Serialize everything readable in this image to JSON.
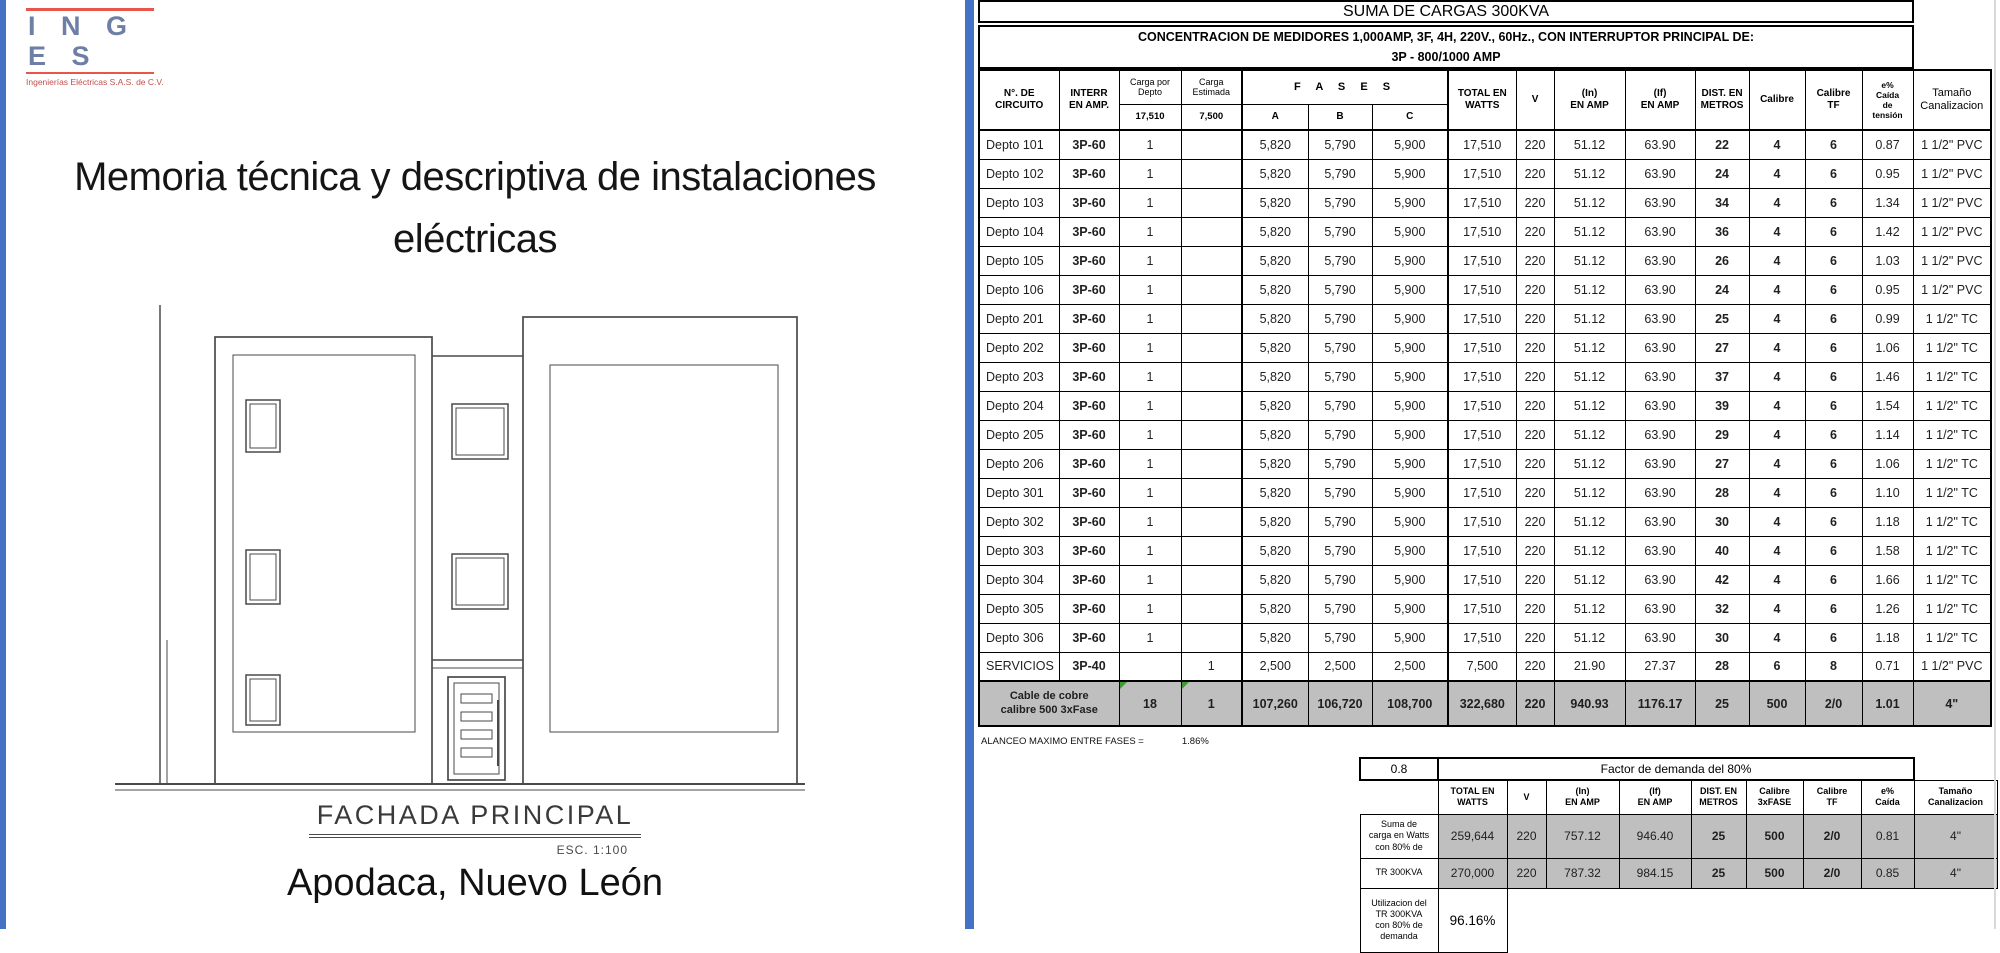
{
  "colors": {
    "accent_blue": "#2776c4",
    "fill_gray": "#bfbfbf",
    "pane_blue": "#4472c4",
    "logo_red": "#e8564a",
    "logo_text": "#6d7fa5"
  },
  "left_panel": {
    "logo_letters": "I N G E S",
    "logo_subtitle": "Ingenierías Eléctricas S.A.S. de C.V.",
    "title_line1": "Memoria técnica y descriptiva de instalaciones",
    "title_line2": "eléctricas",
    "drawing_caption": "FACHADA PRINCIPAL",
    "drawing_scale": "ESC. 1:100",
    "location": "Apodaca, Nuevo León"
  },
  "main_table": {
    "title": "SUMA DE CARGAS 300KVA",
    "subtitle1": "CONCENTRACION DE MEDIDORES  1,000AMP, 3F, 4H, 220V., 60Hz., CON INTERRUPTOR PRINCIPAL DE:",
    "subtitle2": "3P - 800/1000 AMP",
    "header": {
      "circuito": "N°. DE\nCIRCUITO",
      "interr": "INTERR\nEN AMP.",
      "carga_depto": "Carga por\nDepto",
      "carga_depto_val": "17,510",
      "carga_est": "Carga\nEstimada",
      "carga_est_val": "7,500",
      "fases": "F A S E S",
      "fase_a": "A",
      "fase_b": "B",
      "fase_c": "C",
      "total": "TOTAL EN\nWATTS",
      "v": "V",
      "in": "(In)\nEN AMP",
      "if": "(If)\nEN AMP",
      "dist": "DIST. EN\nMETROS",
      "calibre": "Calibre",
      "calibre_tf": "Calibre\nTF",
      "caida": "e%\nCaída\nde\ntensión",
      "tamano": "Tamaño\nCanalizacion"
    },
    "rows": [
      [
        "Depto 101",
        "3P-60",
        "1",
        "",
        "5,820",
        "5,790",
        "5,900",
        "17,510",
        "220",
        "51.12",
        "63.90",
        "22",
        "4",
        "6",
        "0.87",
        "1 1/2\" PVC"
      ],
      [
        "Depto 102",
        "3P-60",
        "1",
        "",
        "5,820",
        "5,790",
        "5,900",
        "17,510",
        "220",
        "51.12",
        "63.90",
        "24",
        "4",
        "6",
        "0.95",
        "1 1/2\" PVC"
      ],
      [
        "Depto 103",
        "3P-60",
        "1",
        "",
        "5,820",
        "5,790",
        "5,900",
        "17,510",
        "220",
        "51.12",
        "63.90",
        "34",
        "4",
        "6",
        "1.34",
        "1 1/2\" PVC"
      ],
      [
        "Depto 104",
        "3P-60",
        "1",
        "",
        "5,820",
        "5,790",
        "5,900",
        "17,510",
        "220",
        "51.12",
        "63.90",
        "36",
        "4",
        "6",
        "1.42",
        "1 1/2\" PVC"
      ],
      [
        "Depto 105",
        "3P-60",
        "1",
        "",
        "5,820",
        "5,790",
        "5,900",
        "17,510",
        "220",
        "51.12",
        "63.90",
        "26",
        "4",
        "6",
        "1.03",
        "1 1/2\" PVC"
      ],
      [
        "Depto 106",
        "3P-60",
        "1",
        "",
        "5,820",
        "5,790",
        "5,900",
        "17,510",
        "220",
        "51.12",
        "63.90",
        "24",
        "4",
        "6",
        "0.95",
        "1 1/2\" PVC"
      ],
      [
        "Depto 201",
        "3P-60",
        "1",
        "",
        "5,820",
        "5,790",
        "5,900",
        "17,510",
        "220",
        "51.12",
        "63.90",
        "25",
        "4",
        "6",
        "0.99",
        "1 1/2\" TC"
      ],
      [
        "Depto 202",
        "3P-60",
        "1",
        "",
        "5,820",
        "5,790",
        "5,900",
        "17,510",
        "220",
        "51.12",
        "63.90",
        "27",
        "4",
        "6",
        "1.06",
        "1 1/2\" TC"
      ],
      [
        "Depto 203",
        "3P-60",
        "1",
        "",
        "5,820",
        "5,790",
        "5,900",
        "17,510",
        "220",
        "51.12",
        "63.90",
        "37",
        "4",
        "6",
        "1.46",
        "1 1/2\" TC"
      ],
      [
        "Depto 204",
        "3P-60",
        "1",
        "",
        "5,820",
        "5,790",
        "5,900",
        "17,510",
        "220",
        "51.12",
        "63.90",
        "39",
        "4",
        "6",
        "1.54",
        "1 1/2\" TC"
      ],
      [
        "Depto 205",
        "3P-60",
        "1",
        "",
        "5,820",
        "5,790",
        "5,900",
        "17,510",
        "220",
        "51.12",
        "63.90",
        "29",
        "4",
        "6",
        "1.14",
        "1 1/2\" TC"
      ],
      [
        "Depto 206",
        "3P-60",
        "1",
        "",
        "5,820",
        "5,790",
        "5,900",
        "17,510",
        "220",
        "51.12",
        "63.90",
        "27",
        "4",
        "6",
        "1.06",
        "1 1/2\" TC"
      ],
      [
        "Depto 301",
        "3P-60",
        "1",
        "",
        "5,820",
        "5,790",
        "5,900",
        "17,510",
        "220",
        "51.12",
        "63.90",
        "28",
        "4",
        "6",
        "1.10",
        "1 1/2\" TC"
      ],
      [
        "Depto 302",
        "3P-60",
        "1",
        "",
        "5,820",
        "5,790",
        "5,900",
        "17,510",
        "220",
        "51.12",
        "63.90",
        "30",
        "4",
        "6",
        "1.18",
        "1 1/2\" TC"
      ],
      [
        "Depto 303",
        "3P-60",
        "1",
        "",
        "5,820",
        "5,790",
        "5,900",
        "17,510",
        "220",
        "51.12",
        "63.90",
        "40",
        "4",
        "6",
        "1.58",
        "1 1/2\" TC"
      ],
      [
        "Depto 304",
        "3P-60",
        "1",
        "",
        "5,820",
        "5,790",
        "5,900",
        "17,510",
        "220",
        "51.12",
        "63.90",
        "42",
        "4",
        "6",
        "1.66",
        "1 1/2\" TC"
      ],
      [
        "Depto 305",
        "3P-60",
        "1",
        "",
        "5,820",
        "5,790",
        "5,900",
        "17,510",
        "220",
        "51.12",
        "63.90",
        "32",
        "4",
        "6",
        "1.26",
        "1 1/2\" TC"
      ],
      [
        "Depto 306",
        "3P-60",
        "1",
        "",
        "5,820",
        "5,790",
        "5,900",
        "17,510",
        "220",
        "51.12",
        "63.90",
        "30",
        "4",
        "6",
        "1.18",
        "1 1/2\" TC"
      ],
      [
        "SERVICIOS",
        "3P-40",
        "",
        "1",
        "2,500",
        "2,500",
        "2,500",
        "7,500",
        "220",
        "21.90",
        "27.37",
        "28",
        "6",
        "8",
        "0.71",
        "1 1/2\" PVC"
      ]
    ],
    "cable_row": [
      "Cable de cobre\ncalibre 500 3xFase",
      "18",
      "1",
      "107,260",
      "106,720",
      "108,700",
      "322,680",
      "220",
      "940.93",
      "1176.17",
      "25",
      "500",
      "2/0",
      "1.01",
      "4\""
    ],
    "balance_label": "ALANCEO MAXIMO ENTRE FASES =",
    "balance_value": "1.86%"
  },
  "demand_table": {
    "factor_value": "0.8",
    "factor_label": "Factor de demanda del 80%",
    "headers": [
      "TOTAL EN\nWATTS",
      "V",
      "(In)\nEN AMP",
      "(If)\nEN AMP",
      "DIST. EN\nMETROS",
      "Calibre\n3xFASE",
      "Calibre\nTF",
      "e%\nCaída",
      "Tamaño\nCanalizacion"
    ],
    "rows": [
      {
        "label": "Suma de\ncarga en Watts\ncon 80% de",
        "values": [
          "259,644",
          "220",
          "757.12",
          "946.40",
          "25",
          "500",
          "2/0",
          "0.81",
          "4\""
        ]
      },
      {
        "label": "TR 300KVA",
        "values": [
          "270,000",
          "220",
          "787.32",
          "984.15",
          "25",
          "500",
          "2/0",
          "0.85",
          "4\""
        ]
      }
    ],
    "util_label": "Utilizacion del\nTR 300KVA\ncon 80% de\ndemanda",
    "util_value": "96.16%"
  }
}
